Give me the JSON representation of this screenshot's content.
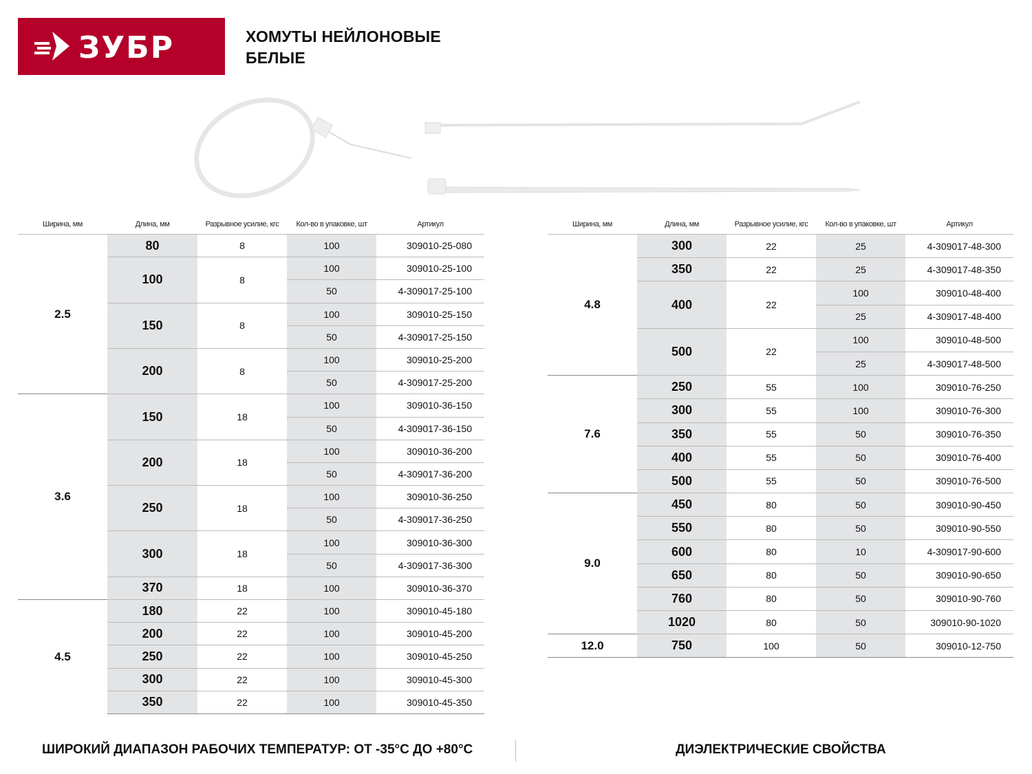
{
  "brand": {
    "logo_text": "ЗУБР",
    "color": "#b5002a"
  },
  "title": {
    "line1": "ХОМУТЫ НЕЙЛОНОВЫЕ",
    "line2": "БЕЛЫЕ"
  },
  "columns": [
    "Ширина, мм",
    "Длина, мм",
    "Разрывное усилие, кгс",
    "Кол-во в упаковке, шт",
    "Артикул"
  ],
  "left_table": [
    {
      "width": "2.5",
      "items": [
        {
          "length": "80",
          "force": "8",
          "packs": [
            {
              "qty": "100",
              "article": "309010-25-080"
            }
          ]
        },
        {
          "length": "100",
          "force": "8",
          "packs": [
            {
              "qty": "100",
              "article": "309010-25-100"
            },
            {
              "qty": "50",
              "article": "4-309017-25-100"
            }
          ]
        },
        {
          "length": "150",
          "force": "8",
          "packs": [
            {
              "qty": "100",
              "article": "309010-25-150"
            },
            {
              "qty": "50",
              "article": "4-309017-25-150"
            }
          ]
        },
        {
          "length": "200",
          "force": "8",
          "packs": [
            {
              "qty": "100",
              "article": "309010-25-200"
            },
            {
              "qty": "50",
              "article": "4-309017-25-200"
            }
          ]
        }
      ]
    },
    {
      "width": "3.6",
      "items": [
        {
          "length": "150",
          "force": "18",
          "packs": [
            {
              "qty": "100",
              "article": "309010-36-150"
            },
            {
              "qty": "50",
              "article": "4-309017-36-150"
            }
          ]
        },
        {
          "length": "200",
          "force": "18",
          "packs": [
            {
              "qty": "100",
              "article": "309010-36-200"
            },
            {
              "qty": "50",
              "article": "4-309017-36-200"
            }
          ]
        },
        {
          "length": "250",
          "force": "18",
          "packs": [
            {
              "qty": "100",
              "article": "309010-36-250"
            },
            {
              "qty": "50",
              "article": "4-309017-36-250"
            }
          ]
        },
        {
          "length": "300",
          "force": "18",
          "packs": [
            {
              "qty": "100",
              "article": "309010-36-300"
            },
            {
              "qty": "50",
              "article": "4-309017-36-300"
            }
          ]
        },
        {
          "length": "370",
          "force": "18",
          "packs": [
            {
              "qty": "100",
              "article": "309010-36-370"
            }
          ]
        }
      ]
    },
    {
      "width": "4.5",
      "items": [
        {
          "length": "180",
          "force": "22",
          "packs": [
            {
              "qty": "100",
              "article": "309010-45-180"
            }
          ]
        },
        {
          "length": "200",
          "force": "22",
          "packs": [
            {
              "qty": "100",
              "article": "309010-45-200"
            }
          ]
        },
        {
          "length": "250",
          "force": "22",
          "packs": [
            {
              "qty": "100",
              "article": "309010-45-250"
            }
          ]
        },
        {
          "length": "300",
          "force": "22",
          "packs": [
            {
              "qty": "100",
              "article": "309010-45-300"
            }
          ]
        },
        {
          "length": "350",
          "force": "22",
          "packs": [
            {
              "qty": "100",
              "article": "309010-45-350"
            }
          ]
        }
      ]
    }
  ],
  "right_table": [
    {
      "width": "4.8",
      "items": [
        {
          "length": "300",
          "force": "22",
          "packs": [
            {
              "qty": "25",
              "article": "4-309017-48-300"
            }
          ]
        },
        {
          "length": "350",
          "force": "22",
          "packs": [
            {
              "qty": "25",
              "article": "4-309017-48-350"
            }
          ]
        },
        {
          "length": "400",
          "force": "22",
          "packs": [
            {
              "qty": "100",
              "article": "309010-48-400"
            },
            {
              "qty": "25",
              "article": "4-309017-48-400"
            }
          ]
        },
        {
          "length": "500",
          "force": "22",
          "packs": [
            {
              "qty": "100",
              "article": "309010-48-500"
            },
            {
              "qty": "25",
              "article": "4-309017-48-500"
            }
          ]
        }
      ]
    },
    {
      "width": "7.6",
      "items": [
        {
          "length": "250",
          "force": "55",
          "packs": [
            {
              "qty": "100",
              "article": "309010-76-250"
            }
          ]
        },
        {
          "length": "300",
          "force": "55",
          "packs": [
            {
              "qty": "100",
              "article": "309010-76-300"
            }
          ]
        },
        {
          "length": "350",
          "force": "55",
          "packs": [
            {
              "qty": "50",
              "article": "309010-76-350"
            }
          ]
        },
        {
          "length": "400",
          "force": "55",
          "packs": [
            {
              "qty": "50",
              "article": "309010-76-400"
            }
          ]
        },
        {
          "length": "500",
          "force": "55",
          "packs": [
            {
              "qty": "50",
              "article": "309010-76-500"
            }
          ]
        }
      ]
    },
    {
      "width": "9.0",
      "items": [
        {
          "length": "450",
          "force": "80",
          "packs": [
            {
              "qty": "50",
              "article": "309010-90-450"
            }
          ]
        },
        {
          "length": "550",
          "force": "80",
          "packs": [
            {
              "qty": "50",
              "article": "309010-90-550"
            }
          ]
        },
        {
          "length": "600",
          "force": "80",
          "packs": [
            {
              "qty": "10",
              "article": "4-309017-90-600"
            }
          ]
        },
        {
          "length": "650",
          "force": "80",
          "packs": [
            {
              "qty": "50",
              "article": "309010-90-650"
            }
          ]
        },
        {
          "length": "760",
          "force": "80",
          "packs": [
            {
              "qty": "50",
              "article": "309010-90-760"
            }
          ]
        },
        {
          "length": "1020",
          "force": "80",
          "packs": [
            {
              "qty": "50",
              "article": "309010-90-1020"
            }
          ]
        }
      ]
    },
    {
      "width": "12.0",
      "items": [
        {
          "length": "750",
          "force": "100",
          "packs": [
            {
              "qty": "50",
              "article": "309010-12-750"
            }
          ]
        }
      ]
    }
  ],
  "footer": {
    "left": "ШИРОКИЙ ДИАПАЗОН РАБОЧИХ ТЕМПЕРАТУР: ОТ -35°С ДО +80°С",
    "right": "ДИЭЛЕКТРИЧЕСКИЕ СВОЙСТВА"
  }
}
